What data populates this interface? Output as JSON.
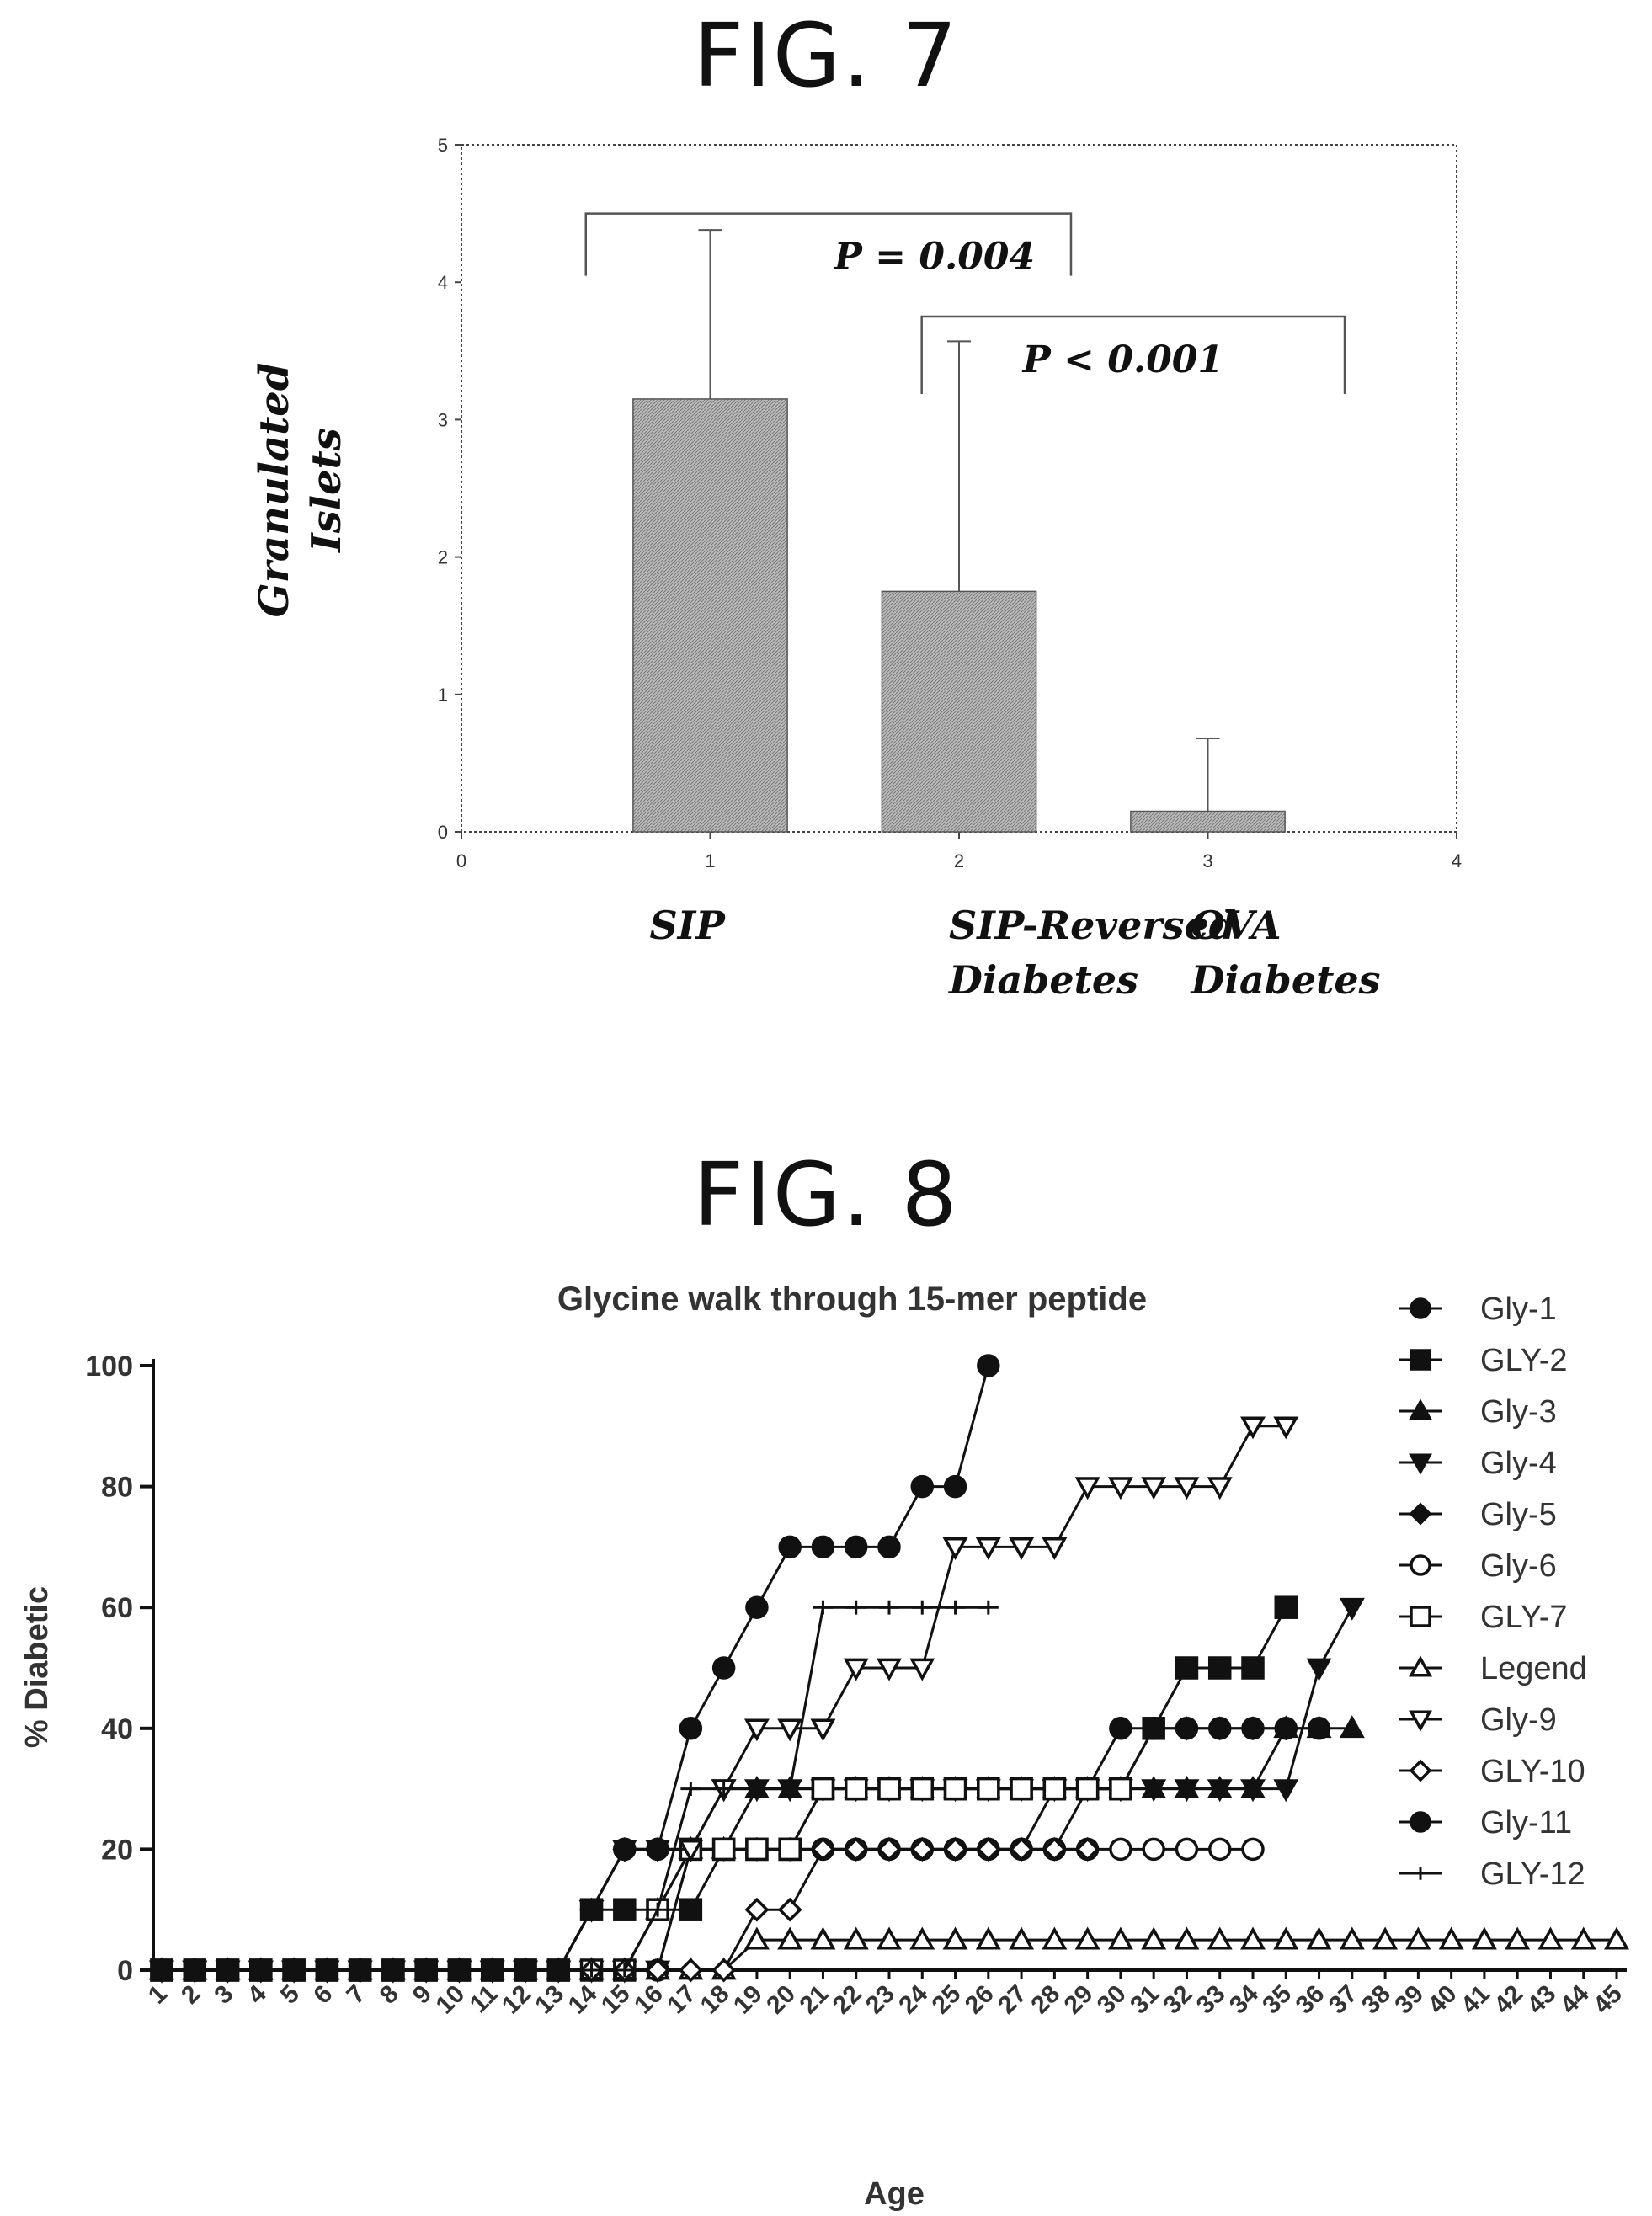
{
  "figures": {
    "fig7_title": "FIG. 7",
    "fig8_title": "FIG. 8"
  },
  "colors": {
    "ink": "#111111",
    "bar_fill": "#b9b9b9",
    "grid": "#555555"
  },
  "chart_data": [
    {
      "type": "bar",
      "ylabel_line1": "Granulated",
      "ylabel_line2": "Islets",
      "xlim": [
        0,
        4
      ],
      "ylim": [
        0,
        5
      ],
      "x_ticks": [
        "0",
        "1",
        "2",
        "3",
        "4"
      ],
      "y_ticks": [
        "0",
        "1",
        "2",
        "3",
        "4",
        "5"
      ],
      "categories": [
        {
          "label_line1": "SIP",
          "label_line2": "",
          "x": 1
        },
        {
          "label_line1": "SIP-Reversed",
          "label_line2": "Diabetes",
          "x": 2
        },
        {
          "label_line1": "OVA",
          "label_line2": "Diabetes",
          "x": 3
        }
      ],
      "values": [
        3.15,
        1.75,
        0.15
      ],
      "error_upper": [
        4.38,
        3.57,
        0.68
      ],
      "annotations": [
        {
          "text": "P = 0.004",
          "from": 0.5,
          "to": 2.45,
          "y": 4.5
        },
        {
          "text": "P < 0.001",
          "from": 1.85,
          "to": 3.55,
          "y": 3.75
        }
      ]
    },
    {
      "type": "line",
      "title": "Glycine walk through 15-mer peptide",
      "xlabel": "Age",
      "ylabel": "% Diabetic",
      "ylim": [
        0,
        100
      ],
      "y_ticks": [
        "0",
        "20",
        "40",
        "60",
        "80",
        "100"
      ],
      "x_ticks": [
        "1",
        "2",
        "3",
        "4",
        "5",
        "6",
        "7",
        "8",
        "9",
        "10",
        "11",
        "12",
        "13",
        "14",
        "15",
        "16",
        "17",
        "18",
        "19",
        "20",
        "21",
        "22",
        "23",
        "24",
        "25",
        "26",
        "27",
        "28",
        "29",
        "30",
        "31",
        "32",
        "33",
        "34",
        "35",
        "36",
        "37",
        "38",
        "39",
        "40",
        "41",
        "42",
        "43",
        "44",
        "45"
      ],
      "series": [
        {
          "name": "Gly-1",
          "marker": "circle-filled",
          "values": [
            0,
            0,
            0,
            0,
            0,
            0,
            0,
            0,
            0,
            0,
            0,
            0,
            0,
            10,
            20,
            20,
            20,
            20,
            20,
            20,
            20,
            20,
            20,
            20,
            20,
            20,
            20,
            20,
            30,
            40,
            40,
            40,
            40,
            40,
            40,
            40,
            null,
            null,
            null,
            null,
            null,
            null,
            null,
            null,
            null
          ]
        },
        {
          "name": "GLY-2",
          "marker": "square-filled",
          "values": [
            0,
            0,
            0,
            0,
            0,
            0,
            0,
            0,
            0,
            0,
            0,
            0,
            0,
            10,
            10,
            10,
            10,
            20,
            20,
            20,
            30,
            30,
            30,
            30,
            30,
            30,
            30,
            30,
            30,
            30,
            40,
            50,
            50,
            50,
            60,
            null,
            null,
            null,
            null,
            null,
            null,
            null,
            null,
            null,
            null
          ]
        },
        {
          "name": "Gly-3",
          "marker": "triangle-up",
          "values": [
            0,
            0,
            0,
            0,
            0,
            0,
            0,
            0,
            0,
            0,
            0,
            0,
            0,
            0,
            0,
            10,
            20,
            20,
            30,
            30,
            30,
            30,
            30,
            30,
            30,
            30,
            30,
            30,
            30,
            30,
            30,
            30,
            30,
            30,
            40,
            40,
            40,
            null,
            null,
            null,
            null,
            null,
            null,
            null,
            null
          ]
        },
        {
          "name": "Gly-4",
          "marker": "triangle-down",
          "values": [
            0,
            0,
            0,
            0,
            0,
            0,
            0,
            0,
            0,
            0,
            0,
            0,
            0,
            0,
            0,
            0,
            20,
            30,
            30,
            30,
            30,
            30,
            30,
            30,
            30,
            30,
            30,
            30,
            30,
            30,
            30,
            30,
            30,
            30,
            30,
            50,
            60,
            null,
            null,
            null,
            null,
            null,
            null,
            null,
            null
          ]
        },
        {
          "name": "Gly-5",
          "marker": "diamond-filled",
          "values": [
            0,
            0,
            0,
            0,
            0,
            0,
            0,
            0,
            0,
            0,
            0,
            0,
            0,
            10,
            20,
            20,
            20,
            20,
            20,
            20,
            20,
            20,
            20,
            20,
            20,
            20,
            20,
            30,
            30,
            30,
            40,
            40,
            40,
            40,
            40,
            null,
            null,
            null,
            null,
            null,
            null,
            null,
            null,
            null,
            null
          ]
        },
        {
          "name": "Gly-6",
          "marker": "circle-open",
          "values": [
            0,
            0,
            0,
            0,
            0,
            0,
            0,
            0,
            0,
            0,
            0,
            0,
            0,
            0,
            0,
            0,
            20,
            20,
            20,
            20,
            20,
            20,
            20,
            20,
            20,
            20,
            20,
            20,
            20,
            20,
            20,
            20,
            20,
            20,
            null,
            null,
            null,
            null,
            null,
            null,
            null,
            null,
            null,
            null,
            null
          ]
        },
        {
          "name": "GLY-7",
          "marker": "square-open",
          "values": [
            0,
            0,
            0,
            0,
            0,
            0,
            0,
            0,
            0,
            0,
            0,
            0,
            0,
            0,
            0,
            10,
            20,
            20,
            20,
            20,
            30,
            30,
            30,
            30,
            30,
            30,
            30,
            30,
            30,
            30,
            null,
            null,
            null,
            null,
            null,
            null,
            null,
            null,
            null,
            null,
            null,
            null,
            null,
            null,
            null
          ]
        },
        {
          "name": "Legend",
          "marker": "triangle-up-open",
          "values": [
            0,
            0,
            0,
            0,
            0,
            0,
            0,
            0,
            0,
            0,
            0,
            0,
            0,
            0,
            0,
            0,
            0,
            0,
            5,
            5,
            5,
            5,
            5,
            5,
            5,
            5,
            5,
            5,
            5,
            5,
            5,
            5,
            5,
            5,
            5,
            5,
            5,
            5,
            5,
            5,
            5,
            5,
            5,
            5,
            5
          ]
        },
        {
          "name": "Gly-9",
          "marker": "triangle-down-open",
          "values": [
            0,
            0,
            0,
            0,
            0,
            0,
            0,
            0,
            0,
            0,
            0,
            0,
            0,
            10,
            20,
            20,
            20,
            30,
            40,
            40,
            40,
            50,
            50,
            50,
            70,
            70,
            70,
            70,
            80,
            80,
            80,
            80,
            80,
            90,
            90,
            null,
            null,
            null,
            null,
            null,
            null,
            null,
            null,
            null,
            null
          ]
        },
        {
          "name": "GLY-10",
          "marker": "diamond-open",
          "values": [
            0,
            0,
            0,
            0,
            0,
            0,
            0,
            0,
            0,
            0,
            0,
            0,
            0,
            0,
            0,
            0,
            0,
            0,
            10,
            10,
            20,
            20,
            20,
            20,
            20,
            20,
            20,
            20,
            20,
            null,
            null,
            null,
            null,
            null,
            null,
            null,
            null,
            null,
            null,
            null,
            null,
            null,
            null,
            null,
            null
          ]
        },
        {
          "name": "Gly-11",
          "marker": "octagon-filled",
          "values": [
            0,
            0,
            0,
            0,
            0,
            0,
            0,
            0,
            0,
            0,
            0,
            0,
            0,
            10,
            20,
            20,
            40,
            50,
            60,
            70,
            70,
            70,
            70,
            80,
            80,
            100,
            null,
            null,
            null,
            null,
            null,
            null,
            null,
            null,
            null,
            null,
            null,
            null,
            null,
            null,
            null,
            null,
            null,
            null,
            null
          ]
        },
        {
          "name": "GLY-12",
          "marker": "tick",
          "values": [
            0,
            0,
            0,
            0,
            0,
            0,
            0,
            0,
            0,
            0,
            0,
            0,
            0,
            0,
            0,
            10,
            30,
            30,
            30,
            30,
            60,
            60,
            60,
            60,
            60,
            60,
            null,
            null,
            null,
            null,
            null,
            null,
            null,
            null,
            null,
            null,
            null,
            null,
            null,
            null,
            null,
            null,
            null,
            null,
            null
          ]
        }
      ],
      "legend_position": "right"
    }
  ]
}
